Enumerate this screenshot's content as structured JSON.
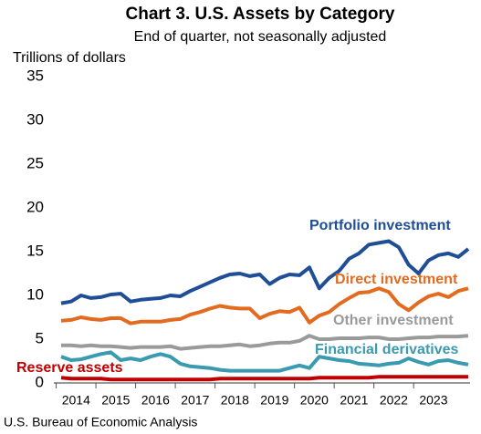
{
  "chart_data": {
    "type": "line",
    "title": "Chart 3. U.S. Assets by Category",
    "subtitle": "End of quarter, not seasonally adjusted",
    "y_label": "Trillions of dollars",
    "source": "U.S. Bureau of Economic Analysis",
    "categories": [
      "2014",
      null,
      null,
      null,
      "2015",
      null,
      null,
      null,
      "2016",
      null,
      null,
      null,
      "2017",
      null,
      null,
      null,
      "2018",
      null,
      null,
      null,
      "2019",
      null,
      null,
      null,
      "2020",
      null,
      null,
      null,
      "2021",
      null,
      null,
      null,
      "2022",
      null,
      null,
      null,
      "2023",
      null,
      null,
      null,
      null,
      null
    ],
    "ylim": [
      0,
      35
    ],
    "yticks": [
      0,
      5,
      10,
      15,
      20,
      25,
      30,
      35
    ],
    "grid": false,
    "series": [
      {
        "name": "Portfolio investment",
        "color": "#1f4e96",
        "values": [
          9.1,
          9.3,
          10.0,
          9.7,
          9.8,
          10.1,
          10.2,
          9.3,
          9.5,
          9.6,
          9.7,
          10.0,
          9.9,
          10.5,
          11.0,
          11.5,
          12.0,
          12.4,
          12.5,
          12.2,
          12.4,
          11.3,
          12.0,
          12.4,
          12.3,
          13.2,
          10.8,
          12.0,
          12.8,
          14.2,
          14.8,
          15.8,
          16.0,
          16.2,
          15.5,
          13.5,
          12.5,
          14.0,
          14.6,
          14.8,
          14.4,
          15.3
        ]
      },
      {
        "name": "Direct investment",
        "color": "#e26b1f",
        "values": [
          7.1,
          7.2,
          7.5,
          7.3,
          7.2,
          7.4,
          7.4,
          6.8,
          7.0,
          7.0,
          7.0,
          7.2,
          7.3,
          7.8,
          8.1,
          8.5,
          8.8,
          8.6,
          8.5,
          8.5,
          7.4,
          7.9,
          8.2,
          8.1,
          8.6,
          6.9,
          7.7,
          8.1,
          9.0,
          9.7,
          10.3,
          10.4,
          10.8,
          10.4,
          9.0,
          8.3,
          9.2,
          9.9,
          10.2,
          9.8,
          10.5,
          10.8
        ]
      },
      {
        "name": "Other investment",
        "color": "#9a9a9a",
        "values": [
          4.3,
          4.3,
          4.2,
          4.3,
          4.2,
          4.2,
          4.1,
          4.0,
          4.1,
          4.1,
          4.1,
          4.2,
          3.9,
          4.0,
          4.1,
          4.2,
          4.2,
          4.3,
          4.4,
          4.2,
          4.3,
          4.5,
          4.6,
          4.6,
          4.8,
          5.4,
          5.0,
          5.0,
          5.1,
          5.1,
          5.1,
          5.2,
          5.2,
          5.0,
          5.0,
          5.1,
          5.2,
          5.2,
          5.3,
          5.3,
          5.3,
          5.4
        ]
      },
      {
        "name": "Financial derivatives",
        "color": "#3a9ab0",
        "values": [
          3.0,
          2.6,
          2.7,
          3.0,
          3.3,
          3.5,
          2.6,
          2.8,
          2.6,
          3.0,
          3.3,
          3.0,
          2.2,
          1.9,
          1.8,
          1.7,
          1.5,
          1.4,
          1.4,
          1.4,
          1.4,
          1.4,
          1.4,
          1.7,
          2.0,
          1.7,
          3.0,
          2.8,
          2.6,
          2.5,
          2.2,
          2.1,
          2.0,
          2.2,
          2.3,
          2.8,
          2.4,
          2.1,
          2.5,
          2.6,
          2.3,
          2.1
        ]
      },
      {
        "name": "Reserve assets",
        "color": "#c00000",
        "values": [
          0.6,
          0.5,
          0.5,
          0.5,
          0.5,
          0.4,
          0.4,
          0.4,
          0.4,
          0.4,
          0.4,
          0.4,
          0.4,
          0.4,
          0.4,
          0.4,
          0.5,
          0.5,
          0.5,
          0.5,
          0.5,
          0.5,
          0.5,
          0.5,
          0.5,
          0.5,
          0.6,
          0.6,
          0.6,
          0.6,
          0.6,
          0.6,
          0.7,
          0.7,
          0.7,
          0.7,
          0.7,
          0.7,
          0.7,
          0.7,
          0.7,
          0.7
        ]
      }
    ]
  }
}
